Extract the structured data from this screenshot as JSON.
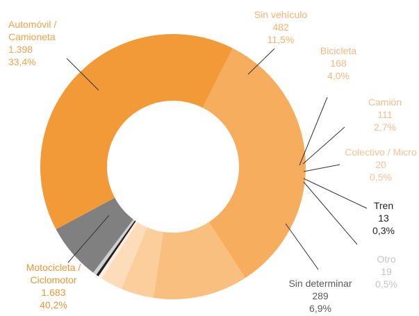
{
  "chart_data": {
    "type": "donut",
    "categories": [
      "Automóvil / Camioneta",
      "Sin vehículo",
      "Bicicleta",
      "Camión",
      "Colectivo / Micro",
      "Tren",
      "Otro",
      "Sin determinar",
      "Motocicleta / Ciclomotor"
    ],
    "values": [
      1398,
      482,
      168,
      111,
      20,
      13,
      19,
      289,
      1683
    ],
    "value_labels": [
      "1.398",
      "482",
      "168",
      "111",
      "20",
      "13",
      "19",
      "289",
      "1.683"
    ],
    "percentages": [
      33.4,
      11.5,
      4.0,
      2.7,
      0.5,
      0.3,
      0.5,
      6.9,
      40.2
    ],
    "percentage_labels": [
      "33,4%",
      "11,5%",
      "4,0%",
      "2,7%",
      "0,5%",
      "0,3%",
      "0,5%",
      "6,9%",
      "40,2%"
    ],
    "colors": [
      "#f6ae5e",
      "#f8bf7f",
      "#fbce9b",
      "#fddcba",
      "#feede0",
      "#222222",
      "#d0d0d0",
      "#808080",
      "#f29a38"
    ],
    "label_colors": [
      "#f0a24c",
      "#f4b16e",
      "#f4b883",
      "#f5bc8e",
      "#f7c193",
      "#222222",
      "#c4c4c4",
      "#5a5a5a",
      "#ee9435"
    ]
  }
}
